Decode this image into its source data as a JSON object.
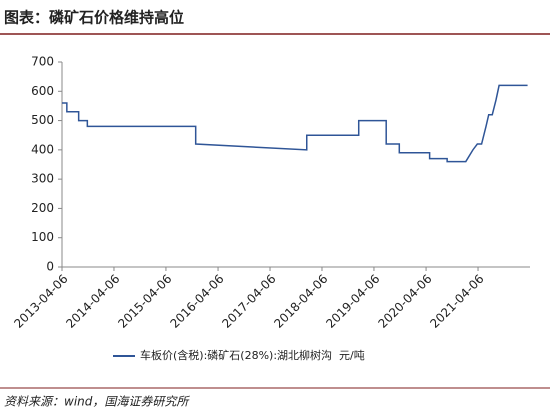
{
  "title": "图表：磷矿石价格维持高位",
  "source": "资料来源：wind，国海证券研究所",
  "chart_data": {
    "type": "line",
    "x": [
      "2013-04-06",
      "2013-05-10",
      "2013-05-10",
      "2013-08-01",
      "2013-08-01",
      "2013-10-01",
      "2013-10-01",
      "2015-11-01",
      "2015-11-01",
      "2017-12-20",
      "2017-12-20",
      "2018-12-20",
      "2018-12-20",
      "2019-07-01",
      "2019-07-01",
      "2019-10-01",
      "2019-10-01",
      "2020-05-01",
      "2020-05-01",
      "2020-09-01",
      "2020-09-01",
      "2021-01-10",
      "2021-03-01",
      "2021-04-01",
      "2021-05-01",
      "2021-06-01",
      "2021-06-20",
      "2021-07-15",
      "2021-08-10",
      "2021-09-01",
      "2022-03-20"
    ],
    "series": [
      {
        "name": "车板价(含税):磷矿石(28%):湖北柳树沟  元/吨",
        "color": "#2f5597",
        "values": [
          560,
          560,
          530,
          530,
          500,
          500,
          480,
          480,
          420,
          400,
          450,
          450,
          500,
          500,
          420,
          420,
          390,
          390,
          370,
          370,
          360,
          360,
          400,
          420,
          420,
          480,
          520,
          520,
          570,
          620,
          620
        ]
      }
    ],
    "xlim": [
      "2013-04-06",
      "2022-04-06"
    ],
    "xticks": [
      "2013-04-06",
      "2014-04-06",
      "2015-04-06",
      "2016-04-06",
      "2017-04-06",
      "2018-04-06",
      "2019-04-06",
      "2020-04-06",
      "2021-04-06"
    ],
    "ylim": [
      0,
      700
    ],
    "yticks": [
      0,
      100,
      200,
      300,
      400,
      500,
      600,
      700
    ],
    "grid": false
  }
}
